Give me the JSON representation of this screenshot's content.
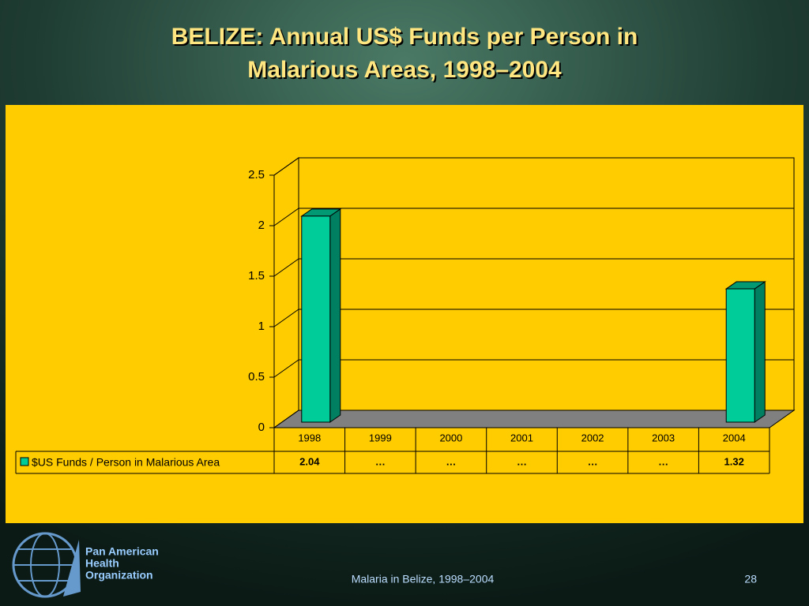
{
  "chart_data": {
    "type": "bar3d",
    "title": "BELIZE: Annual US$ Funds per Person in Malarious Areas, 1998–2004",
    "categories": [
      "1998",
      "1999",
      "2000",
      "2001",
      "2002",
      "2003",
      "2004"
    ],
    "series": [
      {
        "name": "$US Funds / Person in Malarious Area",
        "color": "#00CC99",
        "values": [
          2.04,
          null,
          null,
          null,
          null,
          null,
          1.32
        ],
        "value_labels": [
          "2.04",
          "…",
          "…",
          "…",
          "…",
          "…",
          "1.32"
        ]
      }
    ],
    "ylim": [
      0,
      2.5
    ],
    "yticks": [
      0,
      0.5,
      1,
      1.5,
      2,
      2.5
    ],
    "grid": true
  },
  "slide": {
    "footer": "Malaria in Belize, 1998–2004",
    "page_number": "28",
    "logo_lines": [
      "Pan American",
      "Health",
      "Organization"
    ]
  }
}
